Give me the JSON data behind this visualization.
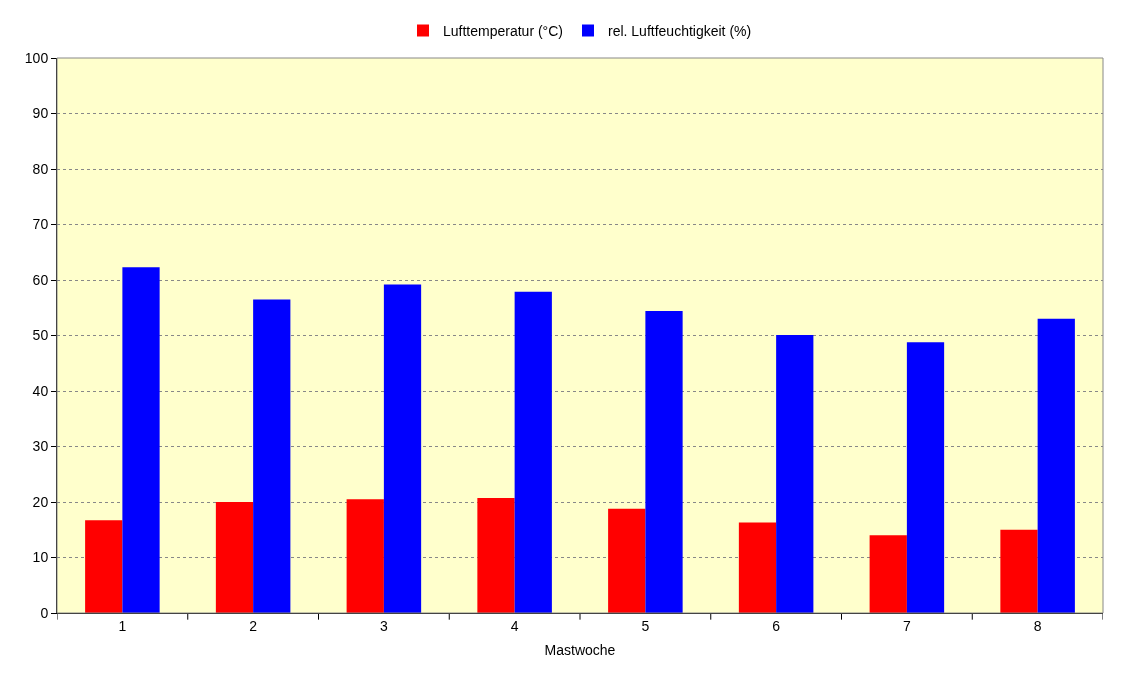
{
  "chart_data": {
    "type": "bar",
    "xlabel": "Mastwoche",
    "categories": [
      "1",
      "2",
      "3",
      "4",
      "5",
      "6",
      "7",
      "8"
    ],
    "series": [
      {
        "name": "Lufttemperatur (°C)",
        "color": "#ff0000",
        "values": [
          16.7,
          20.0,
          20.5,
          20.7,
          18.8,
          16.3,
          14.0,
          15.0
        ]
      },
      {
        "name": "rel. Luftfeuchtigkeit (%)",
        "color": "#0000ff",
        "values": [
          62.3,
          56.5,
          59.2,
          57.9,
          54.4,
          50.1,
          48.8,
          53.0
        ]
      }
    ],
    "ylim": [
      0,
      100
    ],
    "yticks": [
      0,
      10,
      20,
      30,
      40,
      50,
      60,
      70,
      80,
      90,
      100
    ],
    "grid": "y",
    "legend": "top"
  }
}
